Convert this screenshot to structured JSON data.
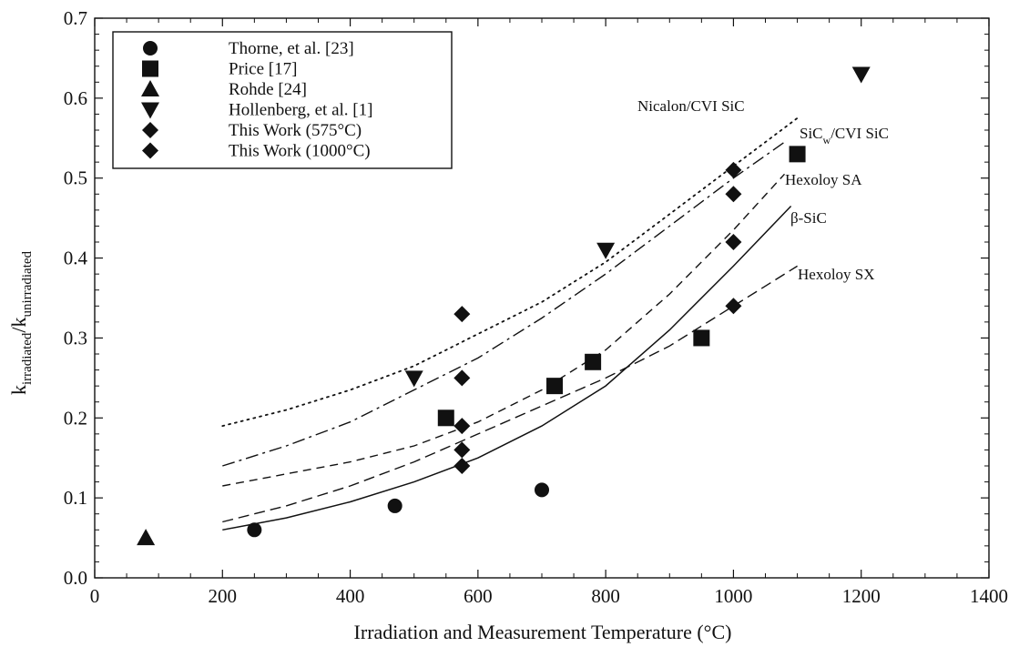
{
  "chart_data": {
    "type": "scatter",
    "xlabel": "Irradiation and Measurement Temperature (°C)",
    "ylabel": {
      "base": "k",
      "sub1": "irradiated",
      "sep": "/k",
      "sub2": "unirradiated"
    },
    "xlim": [
      0,
      1400
    ],
    "ylim": [
      0.0,
      0.7
    ],
    "xticks": [
      0,
      200,
      400,
      600,
      800,
      1000,
      1200,
      1400
    ],
    "yticks": [
      "0.0",
      "0.1",
      "0.2",
      "0.3",
      "0.4",
      "0.5",
      "0.6",
      "0.7"
    ],
    "legend_position": "top-left",
    "series": [
      {
        "name": "Thorne, et al. [23]",
        "marker": "circle",
        "points": [
          [
            250,
            0.06
          ],
          [
            470,
            0.09
          ],
          [
            700,
            0.11
          ]
        ]
      },
      {
        "name": "Price [17]",
        "marker": "square",
        "points": [
          [
            550,
            0.2
          ],
          [
            720,
            0.24
          ],
          [
            780,
            0.27
          ],
          [
            950,
            0.3
          ],
          [
            1100,
            0.53
          ]
        ]
      },
      {
        "name": "Rohde [24]",
        "marker": "triangle-up",
        "points": [
          [
            80,
            0.05
          ]
        ]
      },
      {
        "name": "Hollenberg, et al. [1]",
        "marker": "triangle-down",
        "points": [
          [
            500,
            0.25
          ],
          [
            800,
            0.41
          ],
          [
            1200,
            0.63
          ]
        ]
      },
      {
        "name": "This Work (575°C)",
        "marker": "diamond",
        "points": [
          [
            575,
            0.33
          ],
          [
            575,
            0.25
          ],
          [
            575,
            0.19
          ],
          [
            575,
            0.16
          ],
          [
            575,
            0.14
          ]
        ]
      },
      {
        "name": "This Work (1000°C)",
        "marker": "diamond",
        "points": [
          [
            1000,
            0.51
          ],
          [
            1000,
            0.48
          ],
          [
            1000,
            0.42
          ],
          [
            1000,
            0.34
          ]
        ]
      }
    ],
    "curves": [
      {
        "label": "Nicalon/CVI SiC",
        "style": "dotted",
        "x": [
          200,
          300,
          400,
          500,
          600,
          700,
          800,
          900,
          1000,
          1100
        ],
        "y": [
          0.19,
          0.21,
          0.235,
          0.265,
          0.305,
          0.345,
          0.395,
          0.455,
          0.515,
          0.575
        ]
      },
      {
        "label": "SiC",
        "label_sub": "w",
        "label_rest": "/CVI SiC",
        "style": "dash-dot",
        "x": [
          200,
          300,
          400,
          500,
          600,
          700,
          800,
          900,
          1000,
          1080
        ],
        "y": [
          0.14,
          0.165,
          0.195,
          0.235,
          0.275,
          0.325,
          0.38,
          0.44,
          0.5,
          0.545
        ]
      },
      {
        "label": "Hexoloy SA",
        "style": "dashed",
        "x": [
          200,
          300,
          400,
          500,
          600,
          700,
          800,
          900,
          1000,
          1080
        ],
        "y": [
          0.115,
          0.13,
          0.145,
          0.165,
          0.195,
          0.235,
          0.285,
          0.355,
          0.435,
          0.505
        ]
      },
      {
        "label": "β-SiC",
        "style": "solid",
        "x": [
          200,
          300,
          400,
          500,
          600,
          700,
          800,
          900,
          1000,
          1090
        ],
        "y": [
          0.06,
          0.075,
          0.095,
          0.12,
          0.15,
          0.19,
          0.24,
          0.31,
          0.39,
          0.465
        ]
      },
      {
        "label": "Hexoloy SX",
        "style": "long-dash",
        "x": [
          200,
          300,
          400,
          500,
          600,
          700,
          800,
          900,
          1000,
          1100
        ],
        "y": [
          0.07,
          0.09,
          0.115,
          0.145,
          0.18,
          0.215,
          0.25,
          0.29,
          0.34,
          0.39
        ]
      }
    ]
  }
}
